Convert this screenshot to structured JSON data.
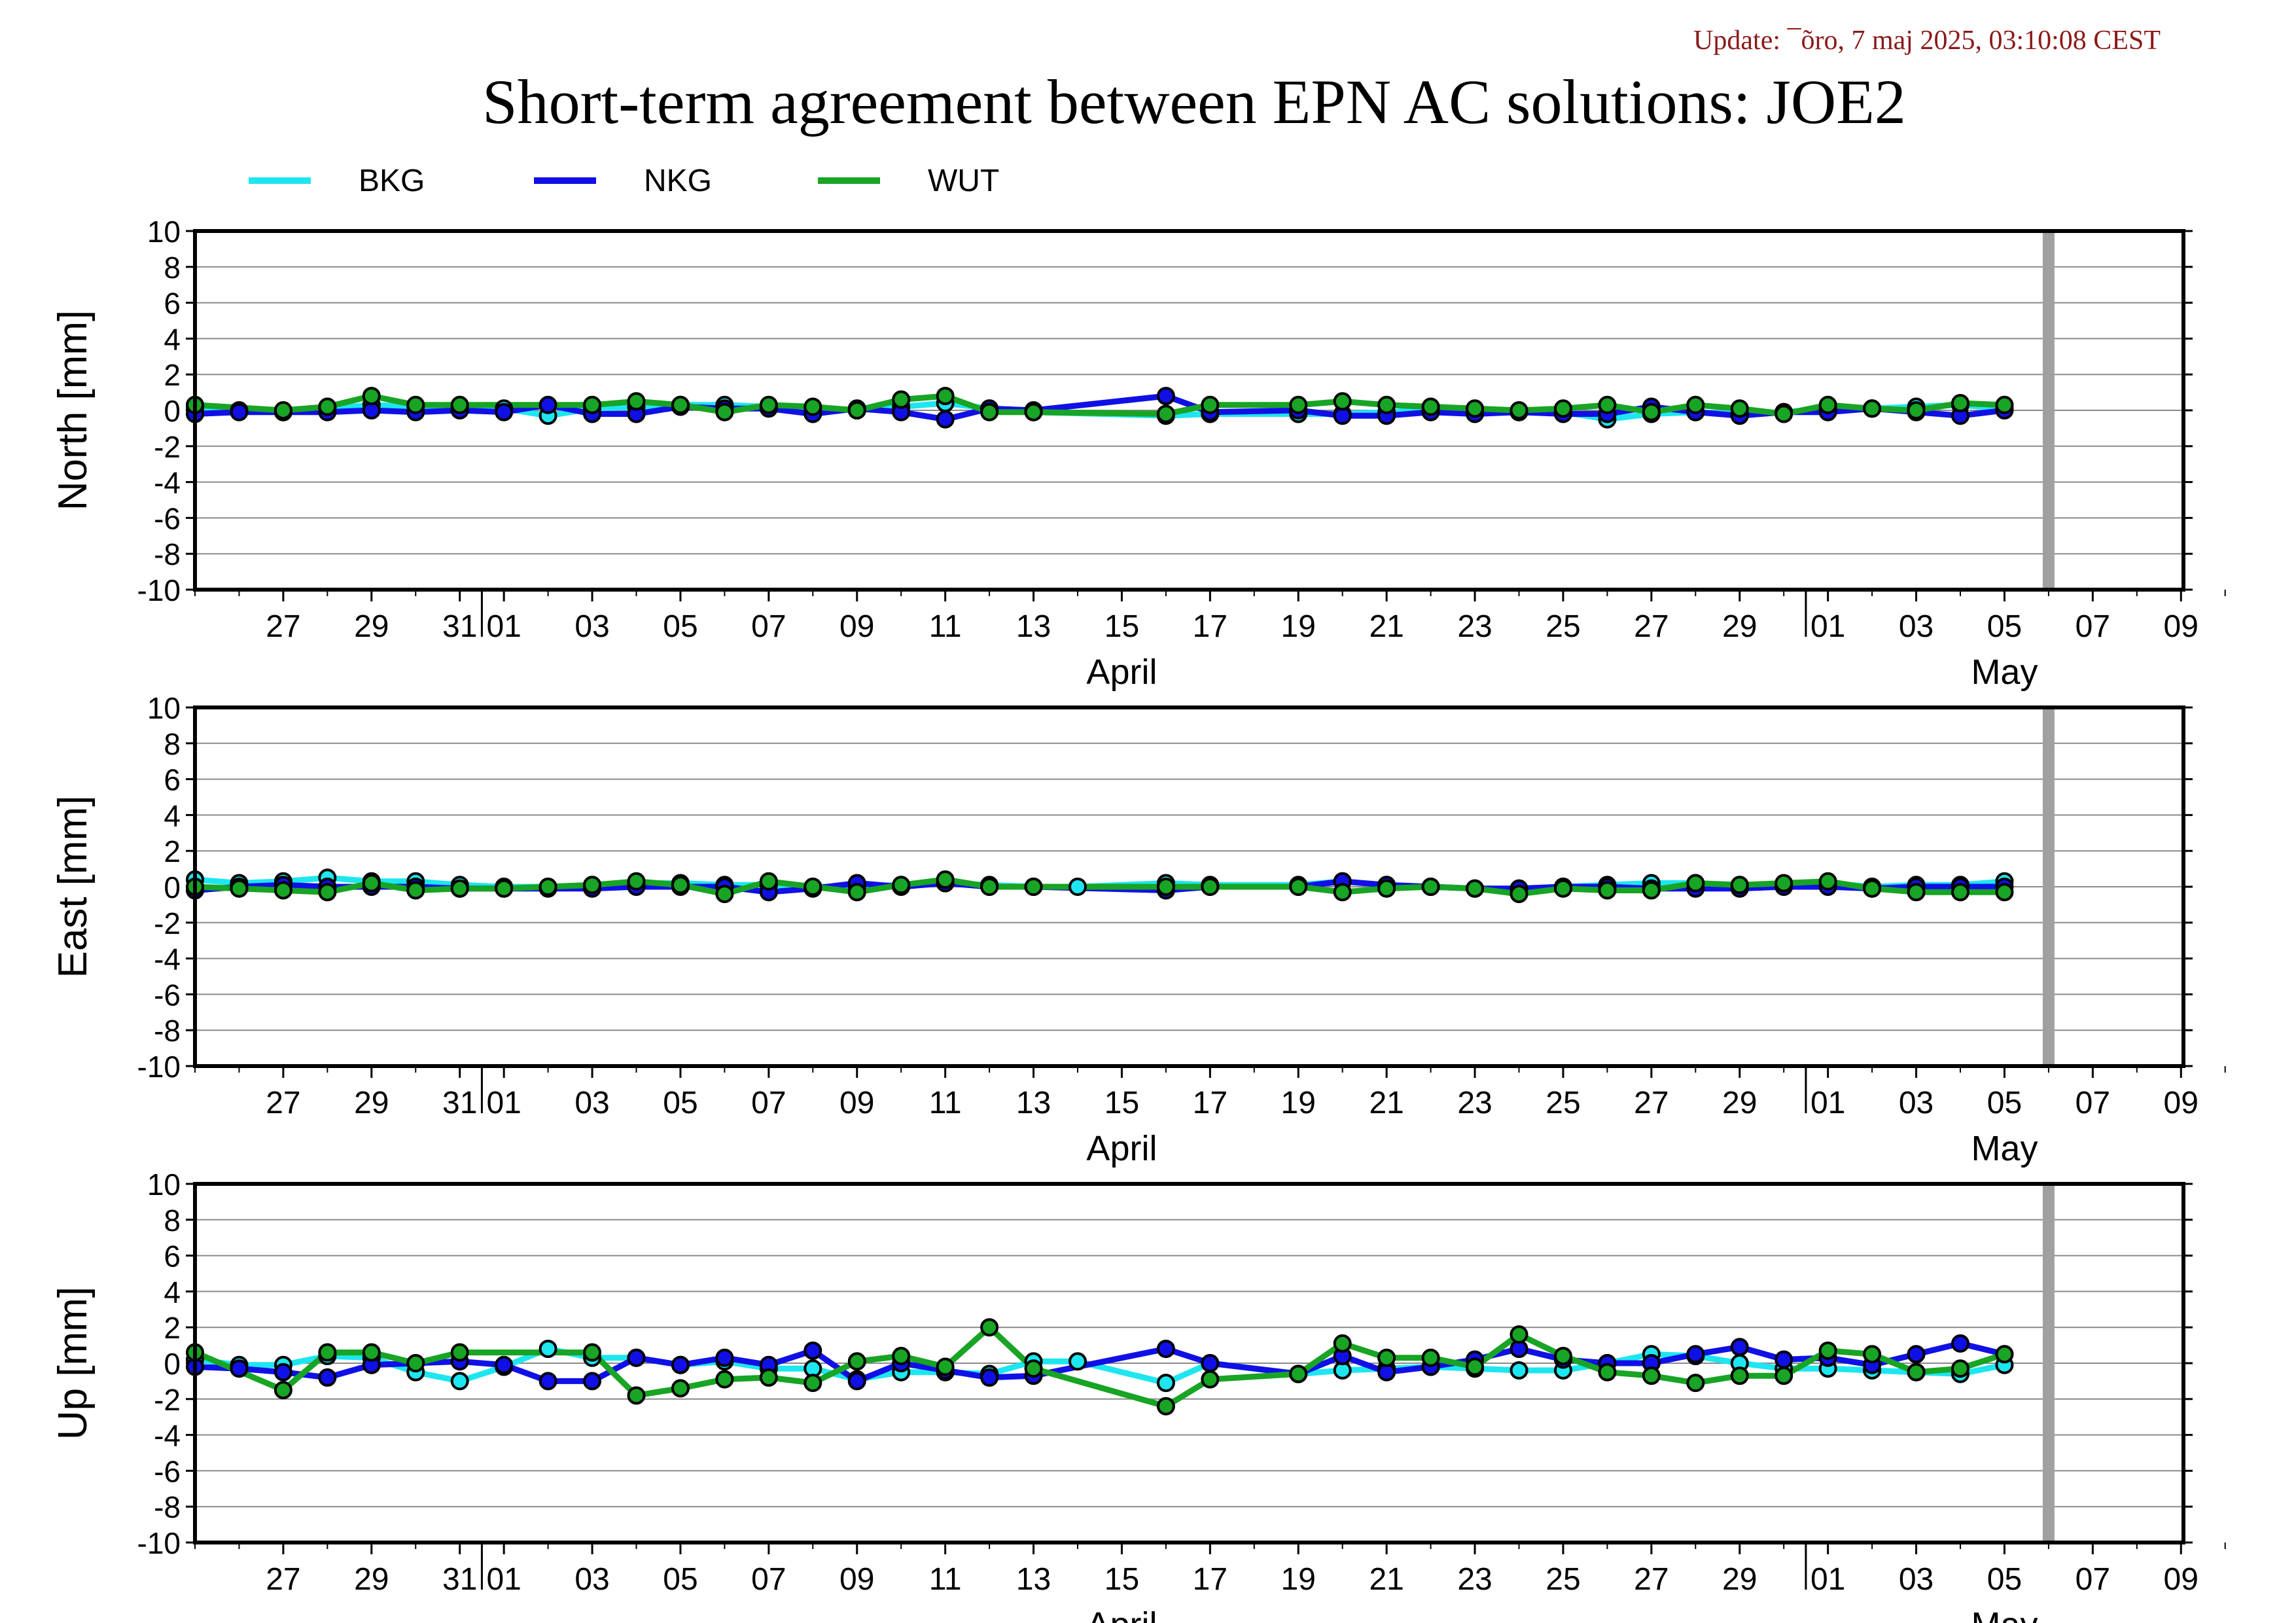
{
  "update_text": "Update: ¯õro, 7 maj 2025, 03:10:08 CEST",
  "title": "Short-term agreement between EPN AC solutions: JOE2",
  "legend": [
    {
      "name": "BKG",
      "color": "#1ee6f0"
    },
    {
      "name": "NKG",
      "color": "#1010e6"
    },
    {
      "name": "WUT",
      "color": "#18a424"
    }
  ],
  "chart_data": {
    "type": "line",
    "x_range": [
      "2025-03-25",
      "2025-05-10"
    ],
    "ylim": [
      -10,
      10
    ],
    "yticks": [
      -10,
      -8,
      -6,
      -4,
      -2,
      0,
      2,
      4,
      6,
      8,
      10
    ],
    "grid": true,
    "marker_line": "2025-05-06",
    "x_tick_labels": [
      "27",
      "29",
      "31",
      "01",
      "03",
      "05",
      "07",
      "09",
      "11",
      "13",
      "15",
      "17",
      "19",
      "21",
      "23",
      "25",
      "27",
      "29",
      "01",
      "03",
      "05",
      "07",
      "09"
    ],
    "month_labels": [
      "April",
      "May"
    ],
    "panels": [
      {
        "ylabel": "North [mm]",
        "series": [
          {
            "name": "BKG",
            "x": [
              "2025-03-25",
              "2025-03-26",
              "2025-03-27",
              "2025-03-28",
              "2025-03-29",
              "2025-03-30",
              "2025-03-31",
              "2025-04-01",
              "2025-04-02",
              "2025-04-03",
              "2025-04-04",
              "2025-04-05",
              "2025-04-06",
              "2025-04-07",
              "2025-04-08",
              "2025-04-09",
              "2025-04-10",
              "2025-04-11",
              "2025-04-12",
              "2025-04-13",
              "2025-04-16",
              "2025-04-17",
              "2025-04-19",
              "2025-04-20",
              "2025-04-21",
              "2025-04-22",
              "2025-04-23",
              "2025-04-24",
              "2025-04-25",
              "2025-04-26",
              "2025-04-27",
              "2025-04-28",
              "2025-04-29",
              "2025-04-30",
              "2025-05-01",
              "2025-05-02",
              "2025-05-03",
              "2025-05-04",
              "2025-05-05"
            ],
            "values": [
              0.1,
              0.0,
              -0.1,
              0.1,
              0.3,
              0.2,
              0.2,
              0.1,
              -0.3,
              0.1,
              0.2,
              0.3,
              0.3,
              0.2,
              0.1,
              0.0,
              0.2,
              0.4,
              0.1,
              -0.1,
              -0.3,
              -0.2,
              -0.2,
              -0.2,
              -0.1,
              0.0,
              -0.1,
              -0.1,
              -0.1,
              -0.5,
              -0.2,
              -0.1,
              -0.2,
              -0.1,
              0.1,
              0.1,
              0.2,
              0.3,
              0.1
            ]
          },
          {
            "name": "NKG",
            "x": [
              "2025-03-25",
              "2025-03-26",
              "2025-03-27",
              "2025-03-28",
              "2025-03-29",
              "2025-03-30",
              "2025-03-31",
              "2025-04-01",
              "2025-04-02",
              "2025-04-03",
              "2025-04-04",
              "2025-04-05",
              "2025-04-06",
              "2025-04-07",
              "2025-04-08",
              "2025-04-09",
              "2025-04-10",
              "2025-04-11",
              "2025-04-12",
              "2025-04-13",
              "2025-04-16",
              "2025-04-17",
              "2025-04-19",
              "2025-04-20",
              "2025-04-21",
              "2025-04-22",
              "2025-04-23",
              "2025-04-24",
              "2025-04-25",
              "2025-04-26",
              "2025-04-27",
              "2025-04-28",
              "2025-04-29",
              "2025-04-30",
              "2025-05-01",
              "2025-05-02",
              "2025-05-03",
              "2025-05-04",
              "2025-05-05"
            ],
            "values": [
              -0.2,
              -0.1,
              -0.1,
              -0.1,
              0.0,
              -0.1,
              0.0,
              -0.1,
              0.3,
              -0.2,
              -0.2,
              0.2,
              0.1,
              0.1,
              -0.2,
              0.1,
              -0.1,
              -0.5,
              0.1,
              0.0,
              0.8,
              -0.1,
              0.0,
              -0.3,
              -0.3,
              -0.1,
              -0.2,
              -0.1,
              -0.2,
              -0.2,
              0.2,
              -0.1,
              -0.3,
              -0.1,
              -0.1,
              0.1,
              -0.1,
              -0.3,
              0.0
            ]
          },
          {
            "name": "WUT",
            "x": [
              "2025-03-25",
              "2025-03-27",
              "2025-03-28",
              "2025-03-29",
              "2025-03-30",
              "2025-03-31",
              "2025-04-03",
              "2025-04-04",
              "2025-04-05",
              "2025-04-06",
              "2025-04-07",
              "2025-04-08",
              "2025-04-09",
              "2025-04-10",
              "2025-04-11",
              "2025-04-12",
              "2025-04-13",
              "2025-04-16",
              "2025-04-17",
              "2025-04-19",
              "2025-04-20",
              "2025-04-21",
              "2025-04-22",
              "2025-04-23",
              "2025-04-24",
              "2025-04-25",
              "2025-04-26",
              "2025-04-27",
              "2025-04-28",
              "2025-04-29",
              "2025-04-30",
              "2025-05-01",
              "2025-05-02",
              "2025-05-03",
              "2025-05-04",
              "2025-05-05"
            ],
            "values": [
              0.3,
              0.0,
              0.2,
              0.8,
              0.3,
              0.3,
              0.3,
              0.5,
              0.3,
              -0.1,
              0.3,
              0.2,
              0.0,
              0.6,
              0.8,
              -0.1,
              -0.1,
              -0.2,
              0.3,
              0.3,
              0.5,
              0.3,
              0.2,
              0.1,
              0.0,
              0.1,
              0.3,
              -0.1,
              0.3,
              0.1,
              -0.2,
              0.3,
              0.1,
              0.0,
              0.4,
              0.3
            ]
          }
        ]
      },
      {
        "ylabel": "East [mm]",
        "series": [
          {
            "name": "BKG",
            "x": [
              "2025-03-25",
              "2025-03-26",
              "2025-03-27",
              "2025-03-28",
              "2025-03-29",
              "2025-03-30",
              "2025-03-31",
              "2025-04-01",
              "2025-04-02",
              "2025-04-03",
              "2025-04-04",
              "2025-04-05",
              "2025-04-06",
              "2025-04-07",
              "2025-04-08",
              "2025-04-09",
              "2025-04-10",
              "2025-04-11",
              "2025-04-12",
              "2025-04-13",
              "2025-04-14",
              "2025-04-16",
              "2025-04-17",
              "2025-04-19",
              "2025-04-20",
              "2025-04-21",
              "2025-04-22",
              "2025-04-23",
              "2025-04-24",
              "2025-04-25",
              "2025-04-26",
              "2025-04-27",
              "2025-04-28",
              "2025-04-29",
              "2025-04-30",
              "2025-05-01",
              "2025-05-02",
              "2025-05-03",
              "2025-05-04",
              "2025-05-05"
            ],
            "values": [
              0.4,
              0.2,
              0.3,
              0.5,
              0.3,
              0.3,
              0.1,
              0.0,
              0.0,
              0.1,
              0.2,
              0.2,
              0.1,
              0.1,
              0.0,
              0.0,
              0.1,
              0.2,
              0.1,
              0.0,
              0.0,
              0.2,
              0.1,
              0.1,
              0.3,
              0.1,
              0.0,
              -0.1,
              -0.1,
              0.0,
              0.1,
              0.2,
              0.2,
              0.1,
              0.1,
              0.2,
              0.0,
              0.1,
              0.1,
              0.3
            ]
          },
          {
            "name": "NKG",
            "x": [
              "2025-03-25",
              "2025-03-26",
              "2025-03-27",
              "2025-03-28",
              "2025-03-29",
              "2025-03-30",
              "2025-03-31",
              "2025-04-01",
              "2025-04-02",
              "2025-04-03",
              "2025-04-04",
              "2025-04-05",
              "2025-04-06",
              "2025-04-07",
              "2025-04-08",
              "2025-04-09",
              "2025-04-10",
              "2025-04-11",
              "2025-04-12",
              "2025-04-13",
              "2025-04-16",
              "2025-04-17",
              "2025-04-19",
              "2025-04-20",
              "2025-04-21",
              "2025-04-22",
              "2025-04-23",
              "2025-04-24",
              "2025-04-25",
              "2025-04-26",
              "2025-04-27",
              "2025-04-28",
              "2025-04-29",
              "2025-04-30",
              "2025-05-01",
              "2025-05-02",
              "2025-05-03",
              "2025-05-04",
              "2025-05-05"
            ],
            "values": [
              -0.2,
              0.0,
              0.1,
              0.0,
              0.0,
              0.0,
              -0.1,
              -0.1,
              -0.1,
              -0.1,
              0.0,
              0.0,
              0.0,
              -0.3,
              -0.1,
              0.2,
              0.0,
              0.2,
              0.0,
              0.0,
              -0.2,
              0.0,
              0.0,
              0.3,
              0.1,
              0.0,
              -0.1,
              -0.1,
              0.0,
              0.0,
              -0.1,
              -0.1,
              -0.1,
              0.0,
              0.0,
              -0.1,
              0.0,
              0.0,
              0.0
            ]
          },
          {
            "name": "WUT",
            "x": [
              "2025-03-25",
              "2025-03-26",
              "2025-03-27",
              "2025-03-28",
              "2025-03-29",
              "2025-03-30",
              "2025-03-31",
              "2025-04-01",
              "2025-04-02",
              "2025-04-03",
              "2025-04-04",
              "2025-04-05",
              "2025-04-06",
              "2025-04-07",
              "2025-04-08",
              "2025-04-09",
              "2025-04-10",
              "2025-04-11",
              "2025-04-12",
              "2025-04-13",
              "2025-04-16",
              "2025-04-17",
              "2025-04-19",
              "2025-04-20",
              "2025-04-21",
              "2025-04-22",
              "2025-04-23",
              "2025-04-24",
              "2025-04-25",
              "2025-04-26",
              "2025-04-27",
              "2025-04-28",
              "2025-04-29",
              "2025-04-30",
              "2025-05-01",
              "2025-05-02",
              "2025-05-03",
              "2025-05-04",
              "2025-05-05"
            ],
            "values": [
              0.0,
              -0.1,
              -0.2,
              -0.3,
              0.2,
              -0.2,
              -0.1,
              -0.1,
              0.0,
              0.1,
              0.3,
              0.1,
              -0.4,
              0.3,
              0.0,
              -0.3,
              0.1,
              0.4,
              0.0,
              0.0,
              0.0,
              0.0,
              0.0,
              -0.3,
              -0.1,
              0.0,
              -0.1,
              -0.4,
              -0.1,
              -0.2,
              -0.2,
              0.2,
              0.1,
              0.2,
              0.3,
              -0.1,
              -0.3,
              -0.3,
              -0.3
            ]
          }
        ]
      },
      {
        "ylabel": "Up [mm]",
        "series": [
          {
            "name": "BKG",
            "x": [
              "2025-03-25",
              "2025-03-26",
              "2025-03-27",
              "2025-03-28",
              "2025-03-29",
              "2025-03-30",
              "2025-03-31",
              "2025-04-01",
              "2025-04-02",
              "2025-04-03",
              "2025-04-04",
              "2025-04-05",
              "2025-04-06",
              "2025-04-07",
              "2025-04-08",
              "2025-04-09",
              "2025-04-10",
              "2025-04-11",
              "2025-04-12",
              "2025-04-13",
              "2025-04-14",
              "2025-04-16",
              "2025-04-17",
              "2025-04-19",
              "2025-04-20",
              "2025-04-21",
              "2025-04-22",
              "2025-04-23",
              "2025-04-24",
              "2025-04-25",
              "2025-04-26",
              "2025-04-27",
              "2025-04-28",
              "2025-04-29",
              "2025-04-30",
              "2025-05-01",
              "2025-05-02",
              "2025-05-03",
              "2025-05-04",
              "2025-05-05"
            ],
            "values": [
              0.2,
              -0.1,
              -0.1,
              0.4,
              0.3,
              -0.5,
              -1.0,
              -0.2,
              0.8,
              0.3,
              0.3,
              -0.1,
              0.1,
              -0.3,
              -0.3,
              -0.9,
              -0.5,
              -0.5,
              -0.6,
              0.1,
              0.1,
              -1.1,
              0.0,
              -0.6,
              -0.4,
              -0.3,
              -0.2,
              -0.3,
              -0.4,
              -0.4,
              0.0,
              0.5,
              0.4,
              0.0,
              -0.3,
              -0.3,
              -0.4,
              -0.5,
              -0.6,
              -0.1
            ]
          },
          {
            "name": "NKG",
            "x": [
              "2025-03-25",
              "2025-03-26",
              "2025-03-27",
              "2025-03-28",
              "2025-03-29",
              "2025-03-30",
              "2025-03-31",
              "2025-04-01",
              "2025-04-02",
              "2025-04-03",
              "2025-04-04",
              "2025-04-05",
              "2025-04-06",
              "2025-04-07",
              "2025-04-08",
              "2025-04-09",
              "2025-04-10",
              "2025-04-11",
              "2025-04-12",
              "2025-04-13",
              "2025-04-16",
              "2025-04-17",
              "2025-04-19",
              "2025-04-20",
              "2025-04-21",
              "2025-04-22",
              "2025-04-23",
              "2025-04-24",
              "2025-04-25",
              "2025-04-26",
              "2025-04-27",
              "2025-04-28",
              "2025-04-29",
              "2025-04-30",
              "2025-05-01",
              "2025-05-02",
              "2025-05-03",
              "2025-05-04",
              "2025-05-05"
            ],
            "values": [
              -0.2,
              -0.3,
              -0.5,
              -0.8,
              -0.1,
              0.0,
              0.1,
              -0.1,
              -1.0,
              -1.0,
              0.3,
              -0.1,
              0.3,
              -0.1,
              0.7,
              -1.0,
              0.0,
              -0.4,
              -0.8,
              -0.7,
              0.8,
              0.0,
              -0.6,
              0.4,
              -0.5,
              -0.2,
              0.2,
              0.8,
              0.2,
              0.0,
              0.0,
              0.5,
              0.9,
              0.2,
              0.3,
              -0.1,
              0.5,
              1.1,
              0.5
            ]
          },
          {
            "name": "WUT",
            "x": [
              "2025-03-25",
              "2025-03-27",
              "2025-03-28",
              "2025-03-29",
              "2025-03-30",
              "2025-03-31",
              "2025-04-03",
              "2025-04-04",
              "2025-04-05",
              "2025-04-06",
              "2025-04-07",
              "2025-04-08",
              "2025-04-09",
              "2025-04-10",
              "2025-04-11",
              "2025-04-12",
              "2025-04-13",
              "2025-04-16",
              "2025-04-17",
              "2025-04-19",
              "2025-04-20",
              "2025-04-21",
              "2025-04-22",
              "2025-04-23",
              "2025-04-24",
              "2025-04-25",
              "2025-04-26",
              "2025-04-27",
              "2025-04-28",
              "2025-04-29",
              "2025-04-30",
              "2025-05-01",
              "2025-05-02",
              "2025-05-03",
              "2025-05-04",
              "2025-05-05"
            ],
            "values": [
              0.6,
              -1.5,
              0.6,
              0.6,
              0.0,
              0.6,
              0.6,
              -1.8,
              -1.4,
              -0.9,
              -0.8,
              -1.1,
              0.1,
              0.4,
              -0.2,
              2.0,
              -0.3,
              -2.4,
              -0.9,
              -0.6,
              1.1,
              0.3,
              0.3,
              -0.2,
              1.6,
              0.4,
              -0.5,
              -0.7,
              -1.1,
              -0.7,
              -0.7,
              0.7,
              0.5,
              -0.5,
              -0.3,
              0.5
            ]
          }
        ]
      }
    ]
  }
}
